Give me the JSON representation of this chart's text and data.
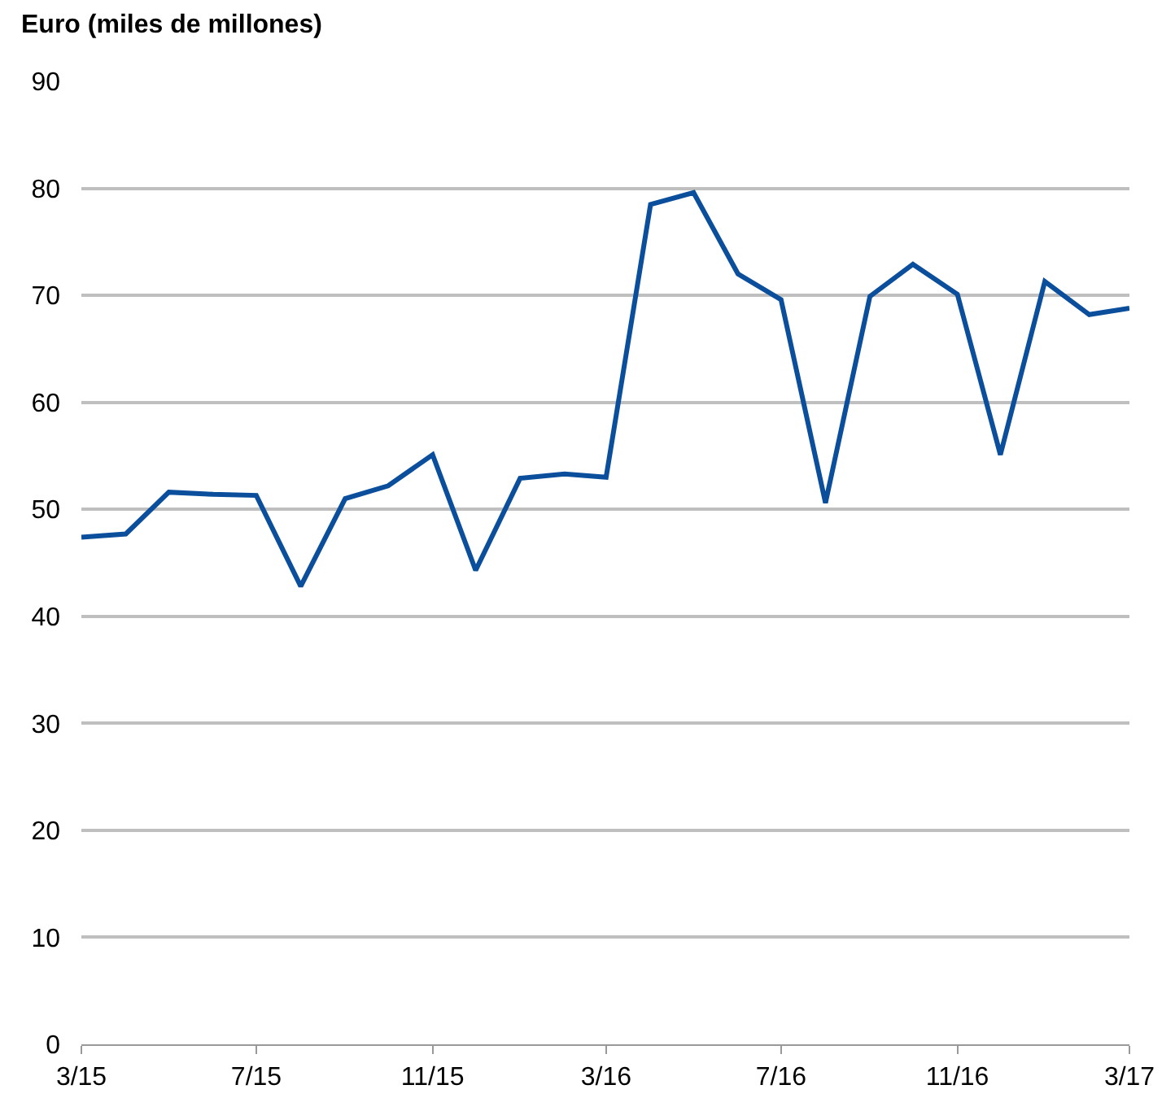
{
  "chart_data": {
    "type": "line",
    "ylabel": "Euro (miles de millones)",
    "x": [
      "2015-03",
      "2015-04",
      "2015-05",
      "2015-06",
      "2015-07",
      "2015-08",
      "2015-09",
      "2015-10",
      "2015-11",
      "2015-12",
      "2016-01",
      "2016-02",
      "2016-03",
      "2016-04",
      "2016-05",
      "2016-06",
      "2016-07",
      "2016-08",
      "2016-09",
      "2016-10",
      "2016-11",
      "2016-12",
      "2017-01",
      "2017-02",
      "2017-03"
    ],
    "series": [
      {
        "color": "#0b4f9c",
        "values": [
          47.4,
          47.7,
          51.6,
          51.4,
          51.3,
          42.8,
          51.0,
          52.2,
          55.1,
          44.3,
          52.9,
          53.3,
          53.0,
          78.5,
          79.6,
          72.0,
          69.6,
          50.6,
          69.9,
          72.9,
          70.1,
          55.1,
          71.3,
          68.2,
          68.8
        ]
      }
    ],
    "xlim": [
      "2015-03",
      "2017-03"
    ],
    "xticks": [
      {
        "value": "2015-03",
        "label": "3/15"
      },
      {
        "value": "2015-07",
        "label": "7/15"
      },
      {
        "value": "2015-11",
        "label": "11/15"
      },
      {
        "value": "2016-03",
        "label": "3/16"
      },
      {
        "value": "2016-07",
        "label": "7/16"
      },
      {
        "value": "2016-11",
        "label": "11/16"
      },
      {
        "value": "2017-03",
        "label": "3/17"
      }
    ],
    "ylim": [
      0,
      90
    ],
    "yticks": [
      0,
      10,
      20,
      30,
      40,
      50,
      60,
      70,
      80,
      90
    ],
    "grid": "y",
    "marker": "none",
    "line_style": "solid"
  }
}
